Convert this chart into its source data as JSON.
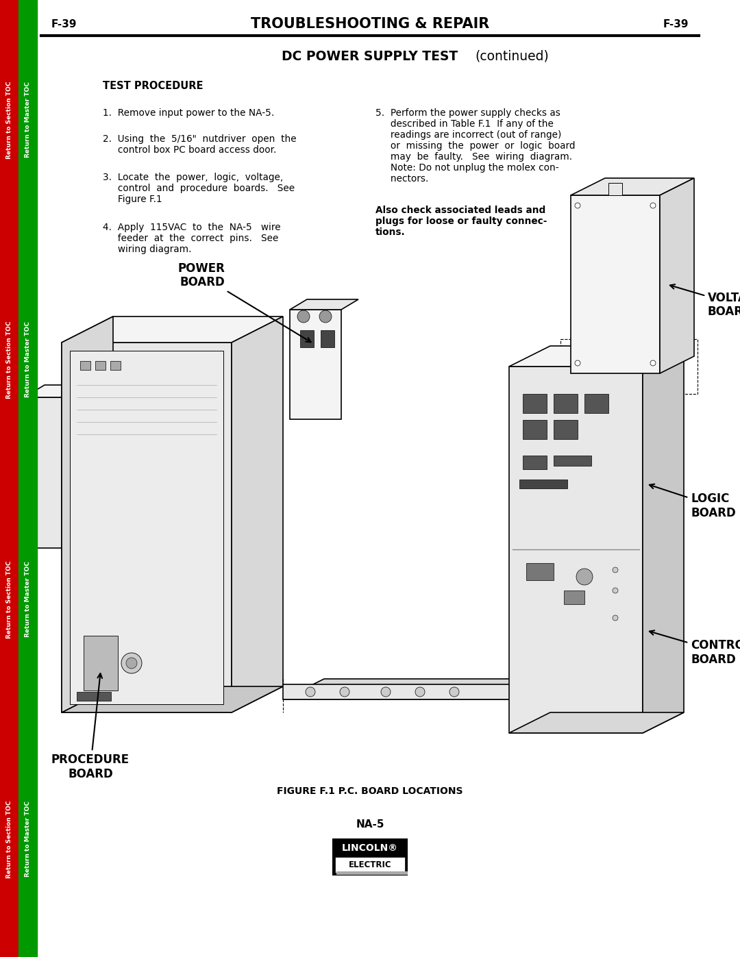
{
  "page_label": "F-39",
  "header_title": "TROUBLESHOOTING & REPAIR",
  "section_title": "DC POWER SUPPLY TEST",
  "section_subtitle": "(continued)",
  "test_procedure_title": "TEST PROCEDURE",
  "step1": "1.  Remove input power to the NA-5.",
  "step2_line1": "2.  Using  the  5/16\"  nutdriver  open  the",
  "step2_line2": "     control box PC board access door.",
  "step3_line1": "3.  Locate  the  power,  logic,  voltage,",
  "step3_line2": "     control  and  procedure  boards.   See",
  "step3_line3": "     Figure F.1",
  "step4_line1": "4.  Apply  115VAC  to  the  NA-5   wire",
  "step4_line2": "     feeder  at  the  correct  pins.   See",
  "step4_line3": "     wiring diagram.",
  "step5_line1": "5.  Perform the power supply checks as",
  "step5_line2": "     described in Table F.1  If any of the",
  "step5_line3": "     readings are incorrect (out of range)",
  "step5_line4": "     or  missing  the  power  or  logic  board",
  "step5_line5": "     may  be  faulty.   See  wiring  diagram.",
  "step5_line6": "     Note: Do not unplug the molex con-",
  "step5_line7": "     nectors.",
  "bold_note_line1": "Also check associated leads and",
  "bold_note_line2": "plugs for loose or faulty connec-",
  "bold_note_line3": "tions.",
  "figure_caption": "FIGURE F.1 P.C. BOARD LOCATIONS",
  "product_name": "NA-5",
  "lincoln_text": "LINCOLN",
  "electric_text": "ELECTRIC",
  "sidebar_left_color": "#cc0000",
  "sidebar_right_color": "#009900",
  "sidebar_left_text": "Return to Section TOC",
  "sidebar_right_text": "Return to Master TOC",
  "background_color": "#ffffff",
  "text_color": "#000000"
}
